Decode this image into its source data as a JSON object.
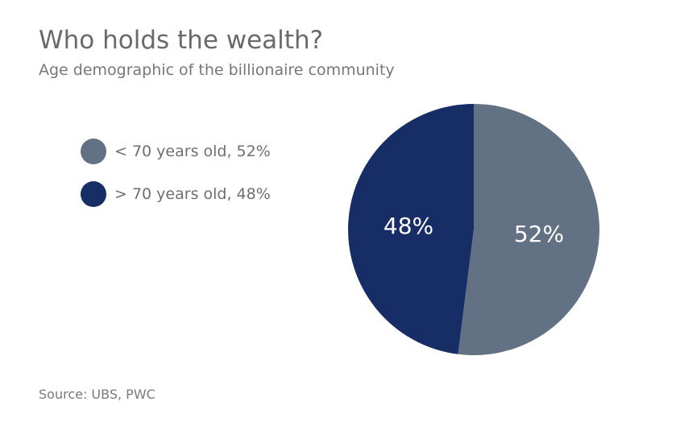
{
  "header": {
    "title": "Who holds the wealth?",
    "subtitle": "Age demographic of the billionaire community"
  },
  "legend": {
    "items": [
      {
        "label": "< 70 years old, 52%",
        "color": "#637184"
      },
      {
        "label": "> 70 years old, 48%",
        "color": "#172d65"
      }
    ]
  },
  "footer": {
    "source": "Source: UBS, PWC"
  },
  "chart_data": {
    "type": "pie",
    "title": "Who holds the wealth?",
    "subtitle": "Age demographic of the billionaire community",
    "slices": [
      {
        "name": "< 70 years old",
        "value": 52,
        "label": "52%",
        "color": "#637184"
      },
      {
        "name": "> 70 years old",
        "value": 48,
        "label": "48%",
        "color": "#172d65"
      }
    ],
    "start_angle_deg": 0,
    "direction": "clockwise",
    "legend_position": "left"
  }
}
